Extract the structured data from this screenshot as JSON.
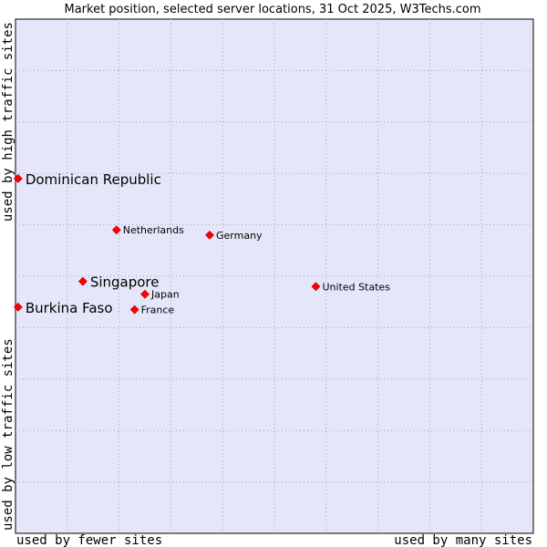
{
  "chart_data": {
    "type": "scatter",
    "title": "Market position, selected server locations, 31 Oct 2025, W3Techs.com",
    "xlabel_left": "used by fewer sites",
    "xlabel_right": "used by many sites",
    "ylabel_bottom": "used by low traffic sites",
    "ylabel_top": "used by high traffic sites",
    "xlim": [
      0,
      10
    ],
    "ylim": [
      0,
      10
    ],
    "grid": true,
    "marker_color": "#ff0000",
    "background_color": "#e6e6fa",
    "points": [
      {
        "name": "Dominican Republic",
        "x": 0.05,
        "y": 6.9,
        "emphasis": true
      },
      {
        "name": "Netherlands",
        "x": 1.95,
        "y": 5.9,
        "emphasis": false
      },
      {
        "name": "Germany",
        "x": 3.75,
        "y": 5.8,
        "emphasis": false
      },
      {
        "name": "Singapore",
        "x": 1.3,
        "y": 4.9,
        "emphasis": true
      },
      {
        "name": "Japan",
        "x": 2.5,
        "y": 4.65,
        "emphasis": false
      },
      {
        "name": "United States",
        "x": 5.8,
        "y": 4.8,
        "emphasis": false
      },
      {
        "name": "Burkina Faso",
        "x": 0.05,
        "y": 4.4,
        "emphasis": true
      },
      {
        "name": "France",
        "x": 2.3,
        "y": 4.35,
        "emphasis": false
      }
    ]
  }
}
